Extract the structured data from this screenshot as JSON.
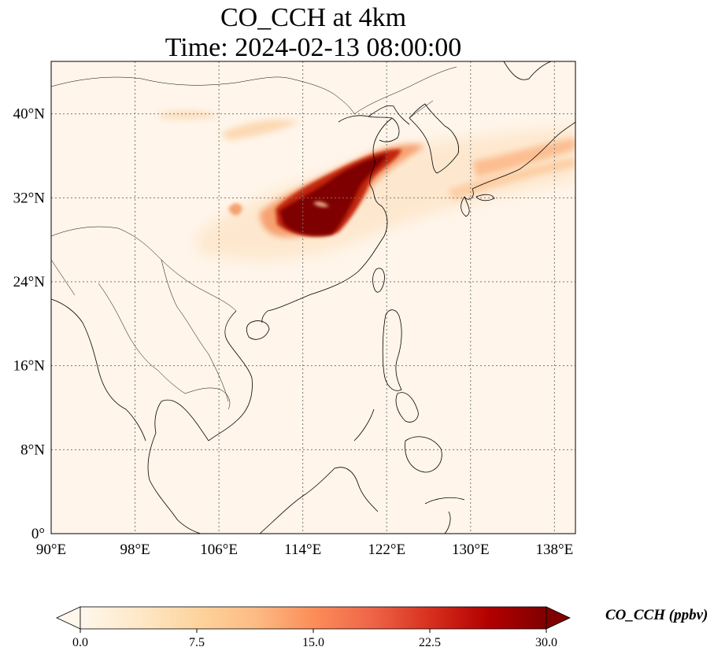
{
  "title": {
    "line1": "CO_CCH at 4km",
    "line2": "Time: 2024-02-13 08:00:00"
  },
  "map": {
    "projection": "PlateCarree",
    "lon_range": [
      90,
      140
    ],
    "lat_range": [
      0,
      45
    ],
    "gridlines": true,
    "x_ticks": [
      {
        "value": 90,
        "label": "90°E"
      },
      {
        "value": 98,
        "label": "98°E"
      },
      {
        "value": 106,
        "label": "106°E"
      },
      {
        "value": 114,
        "label": "114°E"
      },
      {
        "value": 122,
        "label": "122°E"
      },
      {
        "value": 130,
        "label": "130°E"
      },
      {
        "value": 138,
        "label": "138°E"
      }
    ],
    "y_ticks": [
      {
        "value": 0,
        "label": "0°"
      },
      {
        "value": 8,
        "label": "8°N"
      },
      {
        "value": 16,
        "label": "16°N"
      },
      {
        "value": 24,
        "label": "24°N"
      },
      {
        "value": 32,
        "label": "32°N"
      },
      {
        "value": 40,
        "label": "40°N"
      }
    ],
    "plume_description_ppbv": {
      "peak_region": {
        "lon": [
          111,
          120
        ],
        "lat": [
          28,
          35
        ],
        "value": 30
      },
      "outflow_band": {
        "lon": [
          113,
          140
        ],
        "lat": [
          30,
          38
        ],
        "value": 12
      }
    }
  },
  "colorbar": {
    "cmap": "OrRd",
    "min": 0.0,
    "max": 30.0,
    "extend": "both",
    "ticks": [
      {
        "value": 0.0,
        "label": "0.0"
      },
      {
        "value": 7.5,
        "label": "7.5"
      },
      {
        "value": 15.0,
        "label": "15.0"
      },
      {
        "value": 22.5,
        "label": "22.5"
      },
      {
        "value": 30.0,
        "label": "30.0"
      }
    ],
    "label": "CO_CCH (ppbv)",
    "colors": [
      "#fff7ec",
      "#fee8c8",
      "#fdd49e",
      "#fdbb84",
      "#fc8d59",
      "#ef6548",
      "#d7301f",
      "#b30000",
      "#7f0000"
    ]
  }
}
